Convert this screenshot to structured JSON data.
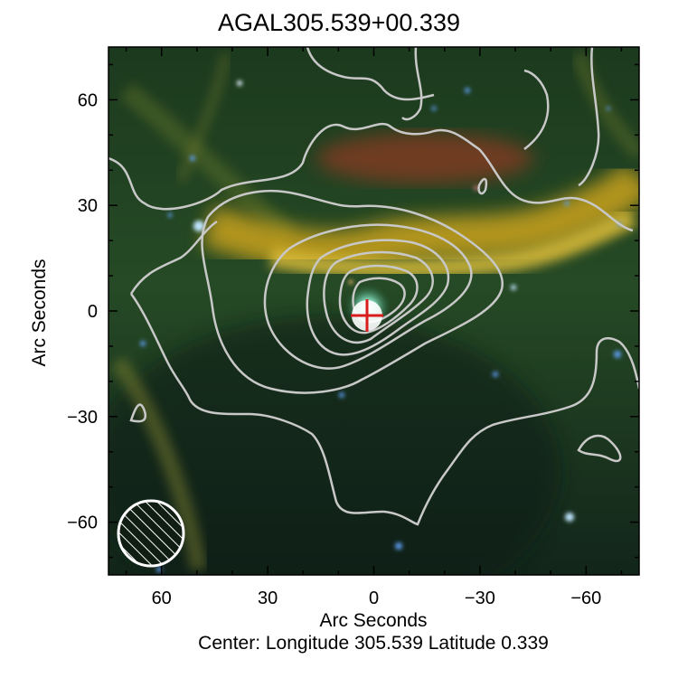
{
  "title": "AGAL305.539+00.339",
  "axes": {
    "x_label": "Arc Seconds",
    "y_label": "Arc Seconds",
    "x_ticks": [
      "60",
      "30",
      "0",
      "−30",
      "−60"
    ],
    "y_ticks": [
      "60",
      "30",
      "0",
      "−30",
      "−60"
    ],
    "x_range_arcsec": [
      75,
      -75
    ],
    "y_range_arcsec": [
      -75,
      75
    ]
  },
  "caption": "Center:  Longitude 305.539 Latitude 0.339",
  "source_marker": {
    "x_arcsec": 0,
    "y_arcsec": 0,
    "symbol": "red-cross-in-circle",
    "color": "#d91c1c"
  },
  "beam": {
    "x_arcsec": 62,
    "y_arcsec": -62,
    "symbol": "hatched-circle",
    "color": "#ffffff"
  },
  "contour_color": "#c8c8c8"
}
